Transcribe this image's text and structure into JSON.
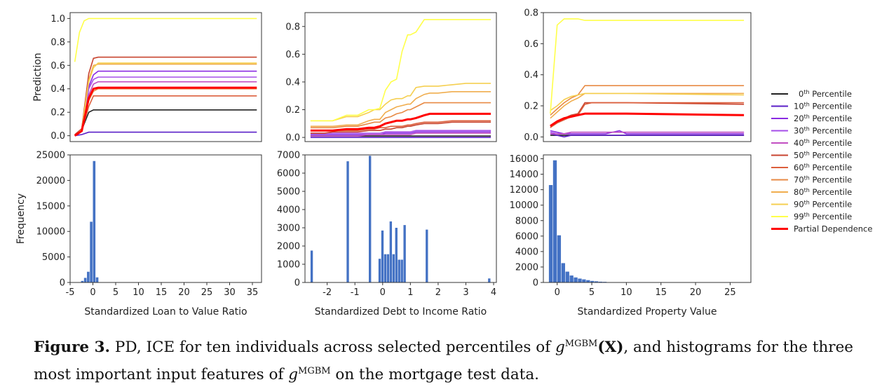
{
  "colors": {
    "pctl": [
      "#222222",
      "#5a1fc7",
      "#8a2be2",
      "#a64ee8",
      "#c24fc2",
      "#c8442f",
      "#dc5f3c",
      "#e88a45",
      "#f0ad4e",
      "#f5cf50",
      "#ffff4a"
    ],
    "pd": "#ff0000",
    "bar": "#4472c4"
  },
  "legend": {
    "entries": [
      {
        "sup": "th",
        "label": "Percentile",
        "num": "0"
      },
      {
        "sup": "th",
        "label": "Percentile",
        "num": "10"
      },
      {
        "sup": "th",
        "label": "Percentile",
        "num": "20"
      },
      {
        "sup": "th",
        "label": "Percentile",
        "num": "30"
      },
      {
        "sup": "th",
        "label": "Percentile",
        "num": "40"
      },
      {
        "sup": "th",
        "label": "Percentile",
        "num": "50"
      },
      {
        "sup": "th",
        "label": "Percentile",
        "num": "60"
      },
      {
        "sup": "th",
        "label": "Percentile",
        "num": "70"
      },
      {
        "sup": "th",
        "label": "Percentile",
        "num": "80"
      },
      {
        "sup": "th",
        "label": "Percentile",
        "num": "90"
      },
      {
        "sup": "th",
        "label": "Percentile",
        "num": "99"
      }
    ],
    "pd_label": "Partial Dependence",
    "placement": "right"
  },
  "caption": {
    "label": "Figure 3.",
    "text1": " PD, ICE for ten individuals across selected percentiles of ",
    "g": "g",
    "mgbm": "MGBM",
    "X": "(X)",
    "text2": ", and histograms for the three most important input features of ",
    "text3": " on the mortgage test data."
  },
  "chart_data": [
    {
      "type": "line",
      "panel": "ltv-ice",
      "ylabel": "Prediction",
      "xlim": [
        -4,
        37
      ],
      "ylim": [
        -0.05,
        1.05
      ],
      "yticks": [
        "0.0",
        "0.2",
        "0.4",
        "0.6",
        "0.8",
        "1.0"
      ],
      "x": [
        -3,
        -1.5,
        0,
        1,
        2,
        36
      ],
      "series": [
        {
          "values": [
            0.0,
            0.05,
            0.2,
            0.22,
            0.22,
            0.22
          ]
        },
        {
          "values": [
            0.0,
            0.01,
            0.03,
            0.03,
            0.03,
            0.03
          ]
        },
        {
          "values": [
            0.0,
            0.05,
            0.42,
            0.52,
            0.55,
            0.55
          ]
        },
        {
          "values": [
            0.0,
            0.05,
            0.4,
            0.48,
            0.5,
            0.5
          ]
        },
        {
          "values": [
            0.0,
            0.05,
            0.35,
            0.44,
            0.46,
            0.46
          ]
        },
        {
          "values": [
            0.01,
            0.06,
            0.53,
            0.66,
            0.67,
            0.67
          ]
        },
        {
          "values": [
            0.0,
            0.04,
            0.25,
            0.34,
            0.34,
            0.34
          ]
        },
        {
          "values": [
            0.0,
            0.04,
            0.3,
            0.38,
            0.4,
            0.4
          ]
        },
        {
          "values": [
            0.0,
            0.05,
            0.48,
            0.6,
            0.61,
            0.61
          ]
        },
        {
          "values": [
            0.0,
            0.05,
            0.46,
            0.58,
            0.62,
            0.62
          ]
        },
        {
          "x": [
            -3,
            -2,
            -1,
            0,
            1,
            36
          ],
          "values": [
            0.63,
            0.88,
            0.98,
            1.0,
            1.0,
            1.0
          ]
        }
      ],
      "pd": {
        "values": [
          0.0,
          0.04,
          0.32,
          0.4,
          0.41,
          0.41
        ]
      }
    },
    {
      "type": "line",
      "panel": "dti-ice",
      "xlim": [
        -2.8,
        4.1
      ],
      "ylim": [
        -0.03,
        0.9
      ],
      "yticks": [
        "0.0",
        "0.2",
        "0.4",
        "0.6",
        "0.8"
      ],
      "x": [
        -2.6,
        -2.1,
        -1.8,
        -1.3,
        -0.9,
        -0.5,
        -0.3,
        -0.1,
        0.1,
        0.3,
        0.5,
        0.7,
        0.9,
        1.0,
        1.2,
        1.5,
        1.7,
        2.0,
        2.5,
        3.0,
        3.9
      ],
      "series": [
        {
          "values": [
            0.01,
            0.01,
            0.01,
            0.01,
            0.01,
            0.01,
            0.01,
            0.01,
            0.01,
            0.01,
            0.01,
            0.01,
            0.01,
            0.01,
            0.01,
            0.01,
            0.01,
            0.01,
            0.01,
            0.01,
            0.01
          ]
        },
        {
          "values": [
            0.0,
            0.0,
            0.0,
            0.0,
            0.0,
            0.0,
            0.0,
            0.0,
            0.0,
            0.0,
            0.0,
            0.0,
            0.0,
            0.0,
            0.0,
            0.0,
            0.0,
            0.0,
            0.0,
            0.0,
            0.0
          ]
        },
        {
          "values": [
            0.02,
            0.02,
            0.02,
            0.02,
            0.02,
            0.02,
            0.02,
            0.02,
            0.03,
            0.03,
            0.03,
            0.03,
            0.03,
            0.03,
            0.04,
            0.04,
            0.04,
            0.04,
            0.04,
            0.04,
            0.04
          ]
        },
        {
          "values": [
            0.03,
            0.03,
            0.03,
            0.03,
            0.03,
            0.03,
            0.03,
            0.03,
            0.04,
            0.04,
            0.04,
            0.04,
            0.04,
            0.04,
            0.05,
            0.05,
            0.05,
            0.05,
            0.05,
            0.05,
            0.05
          ]
        },
        {
          "values": [
            0.01,
            0.01,
            0.01,
            0.01,
            0.01,
            0.02,
            0.02,
            0.02,
            0.02,
            0.02,
            0.02,
            0.02,
            0.02,
            0.02,
            0.03,
            0.03,
            0.03,
            0.03,
            0.03,
            0.03,
            0.03
          ]
        },
        {
          "values": [
            0.03,
            0.03,
            0.04,
            0.04,
            0.04,
            0.05,
            0.05,
            0.05,
            0.06,
            0.06,
            0.07,
            0.07,
            0.08,
            0.08,
            0.09,
            0.1,
            0.1,
            0.1,
            0.11,
            0.11,
            0.11
          ]
        },
        {
          "values": [
            0.05,
            0.05,
            0.05,
            0.05,
            0.05,
            0.06,
            0.06,
            0.07,
            0.07,
            0.08,
            0.08,
            0.08,
            0.09,
            0.09,
            0.1,
            0.11,
            0.11,
            0.11,
            0.12,
            0.12,
            0.12
          ]
        },
        {
          "values": [
            0.07,
            0.07,
            0.07,
            0.08,
            0.08,
            0.1,
            0.11,
            0.11,
            0.14,
            0.15,
            0.17,
            0.18,
            0.2,
            0.2,
            0.22,
            0.25,
            0.25,
            0.25,
            0.25,
            0.25,
            0.25
          ]
        },
        {
          "values": [
            0.08,
            0.08,
            0.08,
            0.09,
            0.09,
            0.12,
            0.13,
            0.13,
            0.18,
            0.2,
            0.22,
            0.23,
            0.24,
            0.24,
            0.28,
            0.31,
            0.32,
            0.32,
            0.33,
            0.33,
            0.33
          ]
        },
        {
          "values": [
            0.12,
            0.12,
            0.12,
            0.15,
            0.15,
            0.18,
            0.2,
            0.2,
            0.24,
            0.27,
            0.28,
            0.28,
            0.3,
            0.3,
            0.36,
            0.37,
            0.37,
            0.37,
            0.38,
            0.39,
            0.39
          ]
        },
        {
          "values": [
            0.12,
            0.12,
            0.12,
            0.16,
            0.16,
            0.2,
            0.2,
            0.21,
            0.34,
            0.4,
            0.42,
            0.62,
            0.74,
            0.74,
            0.76,
            0.85,
            0.85,
            0.85,
            0.85,
            0.85,
            0.85
          ]
        }
      ],
      "pd": {
        "values": [
          0.05,
          0.05,
          0.05,
          0.06,
          0.06,
          0.07,
          0.07,
          0.08,
          0.1,
          0.11,
          0.12,
          0.12,
          0.13,
          0.13,
          0.14,
          0.16,
          0.17,
          0.17,
          0.17,
          0.17,
          0.17
        ]
      }
    },
    {
      "type": "line",
      "panel": "pv-ice",
      "xlim": [
        -2,
        28
      ],
      "ylim": [
        -0.03,
        0.8
      ],
      "yticks": [
        "0.0",
        "0.2",
        "0.4",
        "0.6",
        "0.8"
      ],
      "x": [
        -1,
        0,
        1,
        2,
        3,
        4,
        5,
        7,
        9,
        10,
        27
      ],
      "series": [
        {
          "values": [
            0.01,
            0.01,
            0.01,
            0.01,
            0.01,
            0.01,
            0.01,
            0.01,
            0.01,
            0.01,
            0.01
          ]
        },
        {
          "values": [
            0.02,
            0.01,
            0.0,
            0.01,
            0.01,
            0.01,
            0.01,
            0.01,
            0.01,
            0.01,
            0.01
          ]
        },
        {
          "values": [
            0.04,
            0.03,
            0.02,
            0.02,
            0.02,
            0.02,
            0.02,
            0.02,
            0.04,
            0.02,
            0.02
          ]
        },
        {
          "values": [
            0.03,
            0.02,
            0.02,
            0.03,
            0.03,
            0.03,
            0.03,
            0.03,
            0.03,
            0.03,
            0.03
          ]
        },
        {
          "values": [
            0.02,
            0.02,
            0.02,
            0.03,
            0.03,
            0.03,
            0.03,
            0.03,
            0.03,
            0.03,
            0.03
          ]
        },
        {
          "values": [
            0.06,
            0.1,
            0.12,
            0.14,
            0.15,
            0.22,
            0.22,
            0.22,
            0.22,
            0.22,
            0.21
          ]
        },
        {
          "values": [
            0.06,
            0.09,
            0.11,
            0.13,
            0.14,
            0.21,
            0.22,
            0.22,
            0.22,
            0.22,
            0.22
          ]
        },
        {
          "values": [
            0.14,
            0.18,
            0.22,
            0.25,
            0.27,
            0.33,
            0.33,
            0.33,
            0.33,
            0.33,
            0.33
          ]
        },
        {
          "values": [
            0.12,
            0.16,
            0.2,
            0.23,
            0.25,
            0.28,
            0.28,
            0.28,
            0.28,
            0.28,
            0.28
          ]
        },
        {
          "values": [
            0.17,
            0.2,
            0.24,
            0.26,
            0.27,
            0.28,
            0.28,
            0.28,
            0.28,
            0.28,
            0.27
          ]
        },
        {
          "values": [
            0.15,
            0.72,
            0.76,
            0.76,
            0.76,
            0.75,
            0.75,
            0.75,
            0.75,
            0.75,
            0.75
          ]
        }
      ],
      "pd": {
        "values": [
          0.07,
          0.1,
          0.12,
          0.13,
          0.14,
          0.15,
          0.15,
          0.15,
          0.15,
          0.15,
          0.14
        ]
      }
    },
    {
      "type": "bar",
      "panel": "ltv-hist",
      "xlabel": "Standardized Loan to Value Ratio",
      "ylabel": "Frequency",
      "xlim": [
        -5,
        37
      ],
      "ylim": [
        0,
        25000
      ],
      "xticks": [
        -5,
        0,
        5,
        10,
        15,
        20,
        25,
        30,
        35
      ],
      "yticks": [
        0,
        5000,
        10000,
        15000,
        20000,
        25000
      ],
      "bin_width": 0.65,
      "bins": [
        -2.6,
        -1.95,
        -1.3,
        -0.65,
        0,
        0.65
      ],
      "values": [
        300,
        900,
        2100,
        11900,
        23800,
        1000
      ]
    },
    {
      "type": "bar",
      "panel": "dti-hist",
      "xlabel": "Standardized Debt to Income Ratio",
      "xlim": [
        -2.8,
        4.1
      ],
      "ylim": [
        0,
        7000
      ],
      "xticks": [
        -2,
        -1,
        0,
        1,
        2,
        3,
        4
      ],
      "yticks": [
        0,
        1000,
        2000,
        3000,
        4000,
        5000,
        6000,
        7000
      ],
      "bin_width": 0.1,
      "bins": [
        -2.6,
        -1.3,
        -0.5,
        -0.15,
        -0.05,
        0.05,
        0.15,
        0.25,
        0.35,
        0.45,
        0.55,
        0.65,
        0.75,
        0.85,
        0.95,
        1.55,
        3.8
      ],
      "values": [
        1750,
        6650,
        6950,
        1300,
        2850,
        1550,
        1550,
        3350,
        1550,
        3000,
        1250,
        1250,
        3150,
        0,
        0,
        2900,
        220
      ]
    },
    {
      "type": "bar",
      "panel": "pv-hist",
      "xlabel": "Standardized Property Value",
      "xlim": [
        -2,
        28
      ],
      "ylim": [
        0,
        16500
      ],
      "xticks": [
        0,
        5,
        10,
        15,
        20,
        25
      ],
      "yticks": [
        0,
        2000,
        4000,
        6000,
        8000,
        10000,
        12000,
        14000,
        16000
      ],
      "bin_width": 0.6,
      "bins": [
        -1.2,
        -0.6,
        0,
        0.6,
        1.2,
        1.8,
        2.4,
        3.0,
        3.6,
        4.2,
        4.8,
        5.4,
        6.0,
        6.6
      ],
      "values": [
        12600,
        15800,
        6100,
        2500,
        1400,
        900,
        650,
        500,
        400,
        300,
        200,
        150,
        100,
        80
      ]
    }
  ]
}
